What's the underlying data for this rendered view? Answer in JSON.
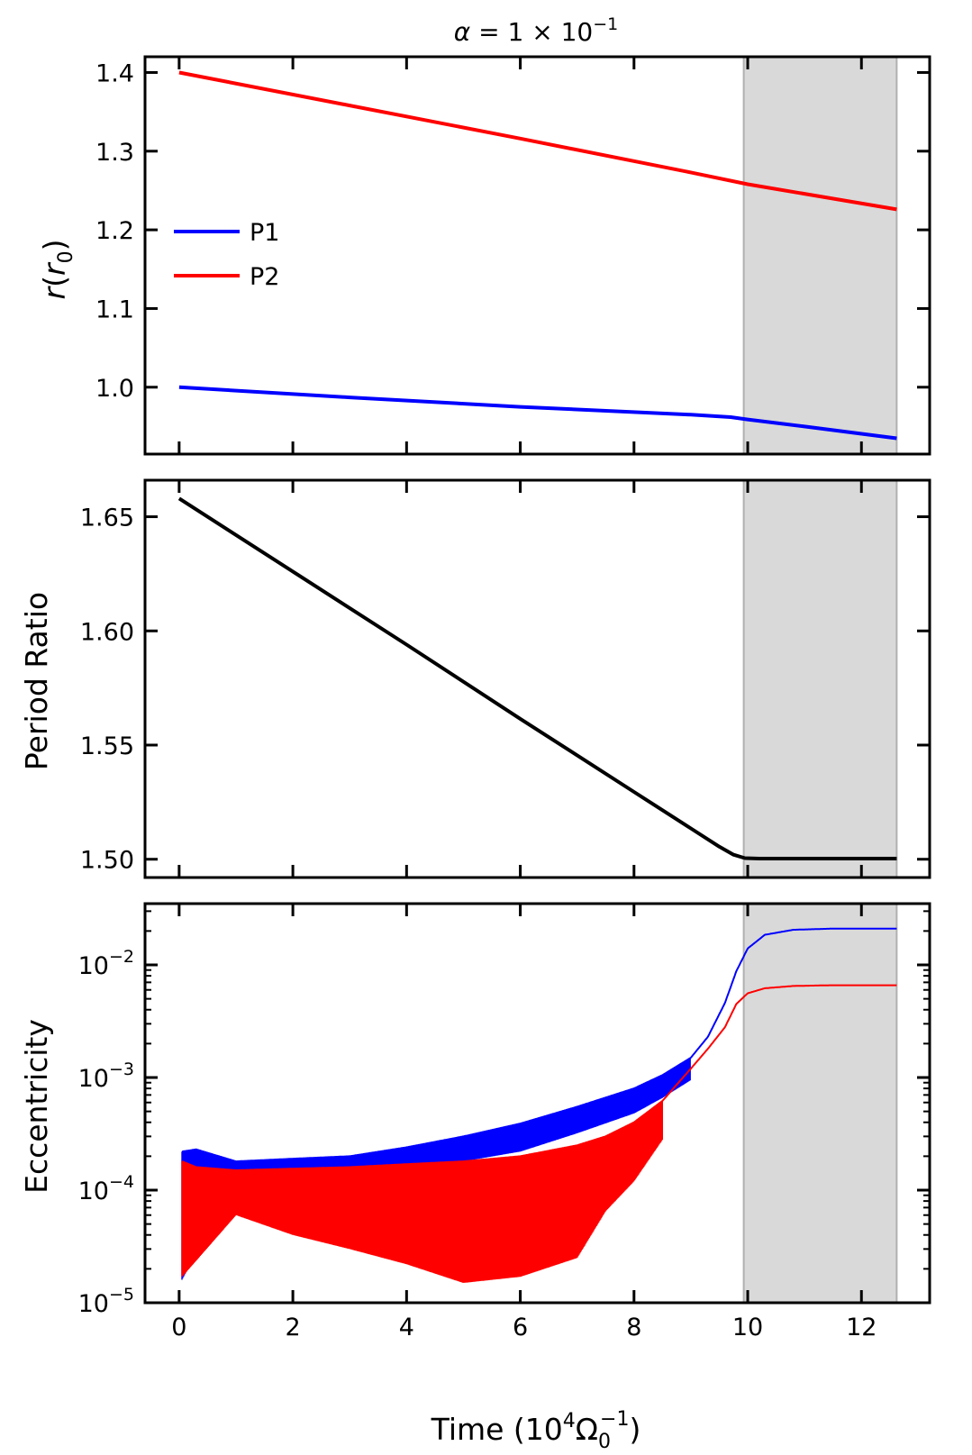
{
  "chart_data": [
    {
      "type": "line",
      "panel": "top",
      "title": "α = 1 × 10⁻¹",
      "title_parts": {
        "lhs": "α",
        "eq": " = 1 × 10",
        "exp": "−1"
      },
      "xlabel": "",
      "ylabel": "r(r₀)",
      "ylabel_parts": {
        "base": "r(",
        "var": "r",
        "sub": "0",
        "close": ")"
      },
      "xlim": [
        -0.6,
        13.2
      ],
      "ylim": [
        0.915,
        1.42
      ],
      "yticks": [
        1.0,
        1.1,
        1.2,
        1.3,
        1.4
      ],
      "ytick_labels": [
        "1.0",
        "1.1",
        "1.2",
        "1.3",
        "1.4"
      ],
      "xticks": [
        0,
        2,
        4,
        6,
        8,
        10,
        12
      ],
      "shaded_region": [
        9.93,
        12.62
      ],
      "legend": {
        "placement": "center-left",
        "entries": [
          "P1",
          "P2"
        ]
      },
      "series": [
        {
          "name": "P1",
          "color": "#0000ff",
          "x": [
            0,
            3,
            6,
            9,
            9.7,
            10.0,
            11.0,
            12.62
          ],
          "y": [
            1.0,
            0.987,
            0.975,
            0.965,
            0.962,
            0.959,
            0.95,
            0.935
          ]
        },
        {
          "name": "P2",
          "color": "#ff0000",
          "x": [
            0,
            3,
            6,
            9,
            10.0,
            12.62
          ],
          "y": [
            1.4,
            1.358,
            1.316,
            1.273,
            1.258,
            1.226
          ]
        }
      ]
    },
    {
      "type": "line",
      "panel": "middle",
      "xlabel": "",
      "ylabel": "Period Ratio",
      "xlim": [
        -0.6,
        13.2
      ],
      "ylim": [
        1.492,
        1.666
      ],
      "yticks": [
        1.5,
        1.55,
        1.6,
        1.65
      ],
      "ytick_labels": [
        "1.50",
        "1.55",
        "1.60",
        "1.65"
      ],
      "xticks": [
        0,
        2,
        4,
        6,
        8,
        10,
        12
      ],
      "shaded_region": [
        9.93,
        12.62
      ],
      "series": [
        {
          "name": "Period Ratio",
          "color": "#000000",
          "x": [
            0,
            2,
            4,
            6,
            8,
            9.0,
            9.5,
            9.75,
            9.95,
            10.2,
            11,
            12,
            12.62
          ],
          "y": [
            1.658,
            1.626,
            1.594,
            1.5615,
            1.5295,
            1.5135,
            1.5055,
            1.502,
            1.5005,
            1.5003,
            1.5003,
            1.5003,
            1.5003
          ]
        }
      ]
    },
    {
      "type": "line",
      "panel": "bottom",
      "yscale": "log",
      "xlabel": "Time (10⁴Ω₀⁻¹)",
      "xlabel_parts": {
        "pre": "Time (10",
        "sup1": "4",
        "omega": "Ω",
        "sub": "0",
        "sup2": "−1",
        "post": ")"
      },
      "ylabel": "Eccentricity",
      "xlim": [
        -0.6,
        13.2
      ],
      "ylim": [
        1e-05,
        0.035
      ],
      "yticks": [
        1e-05,
        0.0001,
        0.001,
        0.01
      ],
      "ytick_labels": [
        {
          "base": "10",
          "exp": "−5"
        },
        {
          "base": "10",
          "exp": "−4"
        },
        {
          "base": "10",
          "exp": "−3"
        },
        {
          "base": "10",
          "exp": "−2"
        }
      ],
      "xticks": [
        0,
        2,
        4,
        6,
        8,
        10,
        12
      ],
      "xtick_labels": [
        "0",
        "2",
        "4",
        "6",
        "8",
        "10",
        "12"
      ],
      "shaded_region": [
        9.93,
        12.62
      ],
      "series": [
        {
          "name": "P1",
          "color": "#0000ff",
          "upper": {
            "x": [
              0.05,
              0.3,
              1,
              2,
              3,
              4,
              5,
              6,
              7,
              8,
              8.5,
              9.0,
              9.3,
              9.6,
              9.8,
              10.0,
              10.3,
              10.8,
              11.5,
              12.62
            ],
            "y": [
              0.00022,
              0.00023,
              0.00018,
              0.00019,
              0.0002,
              0.00024,
              0.0003,
              0.00039,
              0.00055,
              0.0008,
              0.00105,
              0.0015,
              0.0023,
              0.0046,
              0.0088,
              0.014,
              0.0185,
              0.0205,
              0.021,
              0.021
            ]
          },
          "lower": {
            "x": [
              0.05,
              1,
              2,
              3,
              4,
              5,
              6,
              7,
              8,
              8.5,
              9.0
            ],
            "y": [
              1.6e-05,
              0.00013,
              0.00014,
              0.00015,
              0.00016,
              0.00018,
              0.00022,
              0.00032,
              0.00048,
              0.00066,
              0.00095
            ]
          }
        },
        {
          "name": "P2",
          "color": "#ff0000",
          "upper": {
            "x": [
              0.05,
              0.3,
              1,
              2,
              3,
              4,
              5,
              6,
              7,
              7.5,
              8,
              8.5,
              9.0,
              9.3,
              9.6,
              9.8,
              10.0,
              10.3,
              10.8,
              11.5,
              12.62
            ],
            "y": [
              0.00018,
              0.00016,
              0.00015,
              0.000155,
              0.00016,
              0.00017,
              0.00018,
              0.0002,
              0.00025,
              0.0003,
              0.0004,
              0.00062,
              0.0012,
              0.0018,
              0.0028,
              0.0045,
              0.0056,
              0.0062,
              0.0065,
              0.0066,
              0.0066
            ]
          },
          "lower": {
            "x": [
              0.05,
              1,
              2,
              3,
              4,
              5,
              6,
              7,
              7.5,
              8,
              8.5
            ],
            "y": [
              1.7e-05,
              6e-05,
              4e-05,
              3e-05,
              2.2e-05,
              1.5e-05,
              1.7e-05,
              2.5e-05,
              6.5e-05,
              0.00012,
              0.00028
            ]
          }
        }
      ]
    }
  ]
}
